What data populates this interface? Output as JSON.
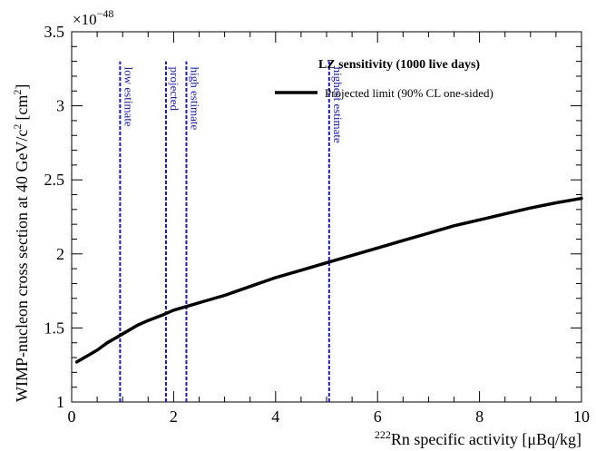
{
  "chart_data": {
    "type": "line",
    "title": "LZ sensitivity (1000 live days)",
    "xlabel_sup": "222",
    "xlabel": "Rn specific activity [μBq/kg]",
    "ylabel_main": "WIMP-nucleon cross section at 40 GeV/c",
    "ylabel_sup": "2",
    "ylabel_unit": "[cm",
    "ylabel_unit_sup": "2",
    "ylabel_end": "]",
    "y_exponent_base": "×10",
    "y_exponent_power": "−48",
    "xlim": [
      0,
      10
    ],
    "ylim": [
      1,
      3.5
    ],
    "x_ticks": [
      0,
      2,
      4,
      6,
      8,
      10
    ],
    "x_tick_labels": [
      "0",
      "2",
      "4",
      "6",
      "8",
      "10"
    ],
    "y_ticks": [
      1,
      1.5,
      2,
      2.5,
      3,
      3.5
    ],
    "y_tick_labels": [
      "1",
      "1.5",
      "2",
      "2.5",
      "3",
      "3.5"
    ],
    "legend": {
      "position": "top-right",
      "entries": [
        {
          "label": "Projected limit (90% CL one-sided)",
          "color": "#000000"
        }
      ]
    },
    "series": [
      {
        "name": "Projected limit (90% CL one-sided)",
        "color": "#000000",
        "x": [
          0.1,
          0.3,
          0.5,
          0.7,
          0.9,
          1.1,
          1.3,
          1.5,
          1.8,
          2.0,
          2.3,
          2.6,
          3.0,
          3.5,
          4.0,
          4.5,
          5.0,
          5.5,
          6.0,
          6.5,
          7.0,
          7.5,
          8.0,
          8.5,
          9.0,
          9.5,
          10.0
        ],
        "y": [
          1.27,
          1.31,
          1.35,
          1.4,
          1.44,
          1.48,
          1.52,
          1.55,
          1.59,
          1.62,
          1.65,
          1.68,
          1.72,
          1.78,
          1.84,
          1.89,
          1.94,
          1.99,
          2.04,
          2.09,
          2.14,
          2.19,
          2.23,
          2.27,
          2.31,
          2.345,
          2.375
        ]
      }
    ],
    "vertical_lines": [
      {
        "x": 0.95,
        "label": "low estimate",
        "color": "#1a1acc",
        "style": "dashed"
      },
      {
        "x": 1.85,
        "label": "projected",
        "color": "#1a1acc",
        "style": "dashed"
      },
      {
        "x": 2.25,
        "label": "high estimate",
        "color": "#1a1acc",
        "style": "dashed"
      },
      {
        "x": 5.05,
        "label": "highest estimate",
        "color": "#1a1acc",
        "style": "dashed"
      }
    ]
  }
}
